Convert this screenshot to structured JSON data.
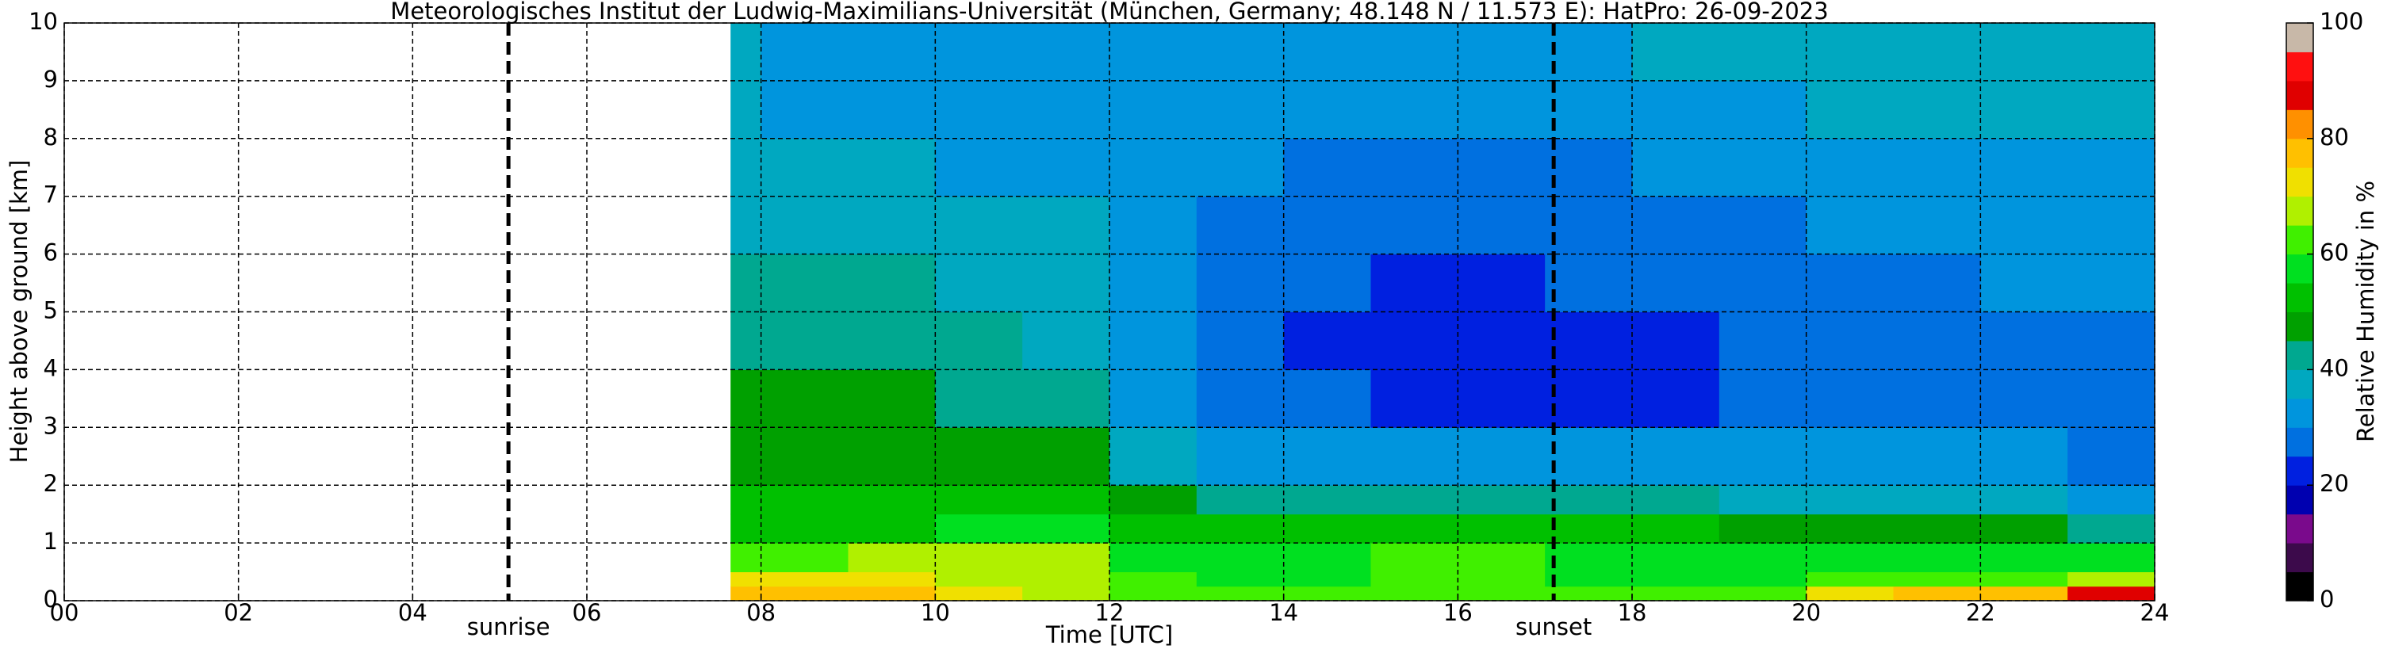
{
  "chart_data": {
    "type": "heatmap",
    "title": "Meteorologisches Institut der Ludwig-Maximilians-Universität (München, Germany; 48.148 N / 11.573 E):    HatPro: 26-09-2023",
    "xlabel": "Time [UTC]",
    "ylabel": "Height above ground [km]",
    "xlim": [
      0,
      24
    ],
    "ylim": [
      0,
      10
    ],
    "xticks": [
      {
        "value": 0,
        "label": "00"
      },
      {
        "value": 2,
        "label": "02"
      },
      {
        "value": 4,
        "label": "04"
      },
      {
        "value": 6,
        "label": "06"
      },
      {
        "value": 8,
        "label": "08"
      },
      10,
      12,
      14,
      16,
      18,
      20,
      22,
      24
    ],
    "yticks": [
      0,
      1,
      2,
      3,
      4,
      5,
      6,
      7,
      8,
      9,
      10
    ],
    "grid": true,
    "x_edges": [
      7.65,
      8,
      9,
      10,
      11,
      12,
      13,
      14,
      15,
      16,
      17,
      18,
      19,
      20,
      21,
      22,
      23,
      24
    ],
    "y_edges": [
      0,
      0.25,
      0.5,
      1,
      1.5,
      2,
      3,
      4,
      5,
      6,
      7,
      8,
      9,
      10
    ],
    "values": [
      [
        75,
        70,
        62,
        52,
        50,
        48,
        47,
        42,
        40,
        38,
        36,
        35,
        35
      ],
      [
        75,
        70,
        62,
        52,
        50,
        48,
        47,
        42,
        40,
        38,
        35,
        33,
        33
      ],
      [
        75,
        72,
        65,
        53,
        50,
        48,
        46,
        42,
        40,
        38,
        35,
        33,
        32
      ],
      [
        70,
        68,
        66,
        55,
        50,
        47,
        44,
        40,
        39,
        37,
        34,
        32,
        31
      ],
      [
        68,
        66,
        65,
        56,
        52,
        48,
        42,
        38,
        37,
        35,
        33,
        31,
        30
      ],
      [
        62,
        60,
        58,
        52,
        45,
        37,
        33,
        32,
        32,
        32,
        31,
        30,
        30
      ],
      [
        60,
        58,
        57,
        50,
        40,
        33,
        28,
        27,
        28,
        29,
        30,
        30,
        30
      ],
      [
        60,
        58,
        57,
        50,
        40,
        32,
        25,
        22,
        26,
        27,
        29,
        30,
        30
      ],
      [
        62,
        60,
        60,
        52,
        40,
        31,
        22,
        21,
        24,
        26,
        28,
        30,
        30
      ],
      [
        62,
        60,
        60,
        52,
        40,
        31,
        21,
        21,
        24,
        26,
        29,
        30,
        32
      ],
      [
        60,
        58,
        57,
        50,
        40,
        31,
        22,
        22,
        26,
        27,
        29,
        32,
        33
      ],
      [
        62,
        57,
        56,
        50,
        40,
        31,
        24,
        24,
        28,
        29,
        30,
        33,
        35
      ],
      [
        63,
        56,
        55,
        49,
        38,
        30,
        25,
        25,
        28,
        29,
        31,
        33,
        36
      ],
      [
        72,
        60,
        55,
        48,
        36,
        30,
        26,
        26,
        29,
        30,
        32,
        35,
        37
      ],
      [
        75,
        62,
        55,
        47,
        35,
        30,
        26,
        27,
        29,
        30,
        32,
        35,
        37
      ],
      [
        78,
        62,
        55,
        45,
        35,
        30,
        26,
        27,
        30,
        30,
        32,
        35,
        37
      ],
      [
        88,
        65,
        55,
        42,
        32,
        28,
        27,
        28,
        30,
        31,
        33,
        36,
        37
      ]
    ],
    "annotations": [
      {
        "x": 5.1,
        "label": "sunrise"
      },
      {
        "x": 17.1,
        "label": "sunset"
      }
    ],
    "colorbar": {
      "label": "Relative Humidity in %",
      "levels": [
        0,
        5,
        10,
        15,
        20,
        25,
        30,
        35,
        40,
        45,
        50,
        55,
        60,
        65,
        70,
        75,
        80,
        85,
        90,
        95,
        100
      ],
      "colors": [
        "#000000",
        "#3c0a4b",
        "#7a0a8c",
        "#0000b0",
        "#0020e0",
        "#0070e0",
        "#0095dd",
        "#00a8c0",
        "#00a890",
        "#00a000",
        "#00c000",
        "#00e020",
        "#40f000",
        "#b0f000",
        "#f0e000",
        "#ffc000",
        "#ff9000",
        "#e00000",
        "#ff1010",
        "#c8b8a8"
      ],
      "ticks": [
        0,
        20,
        40,
        60,
        80,
        100
      ]
    }
  }
}
